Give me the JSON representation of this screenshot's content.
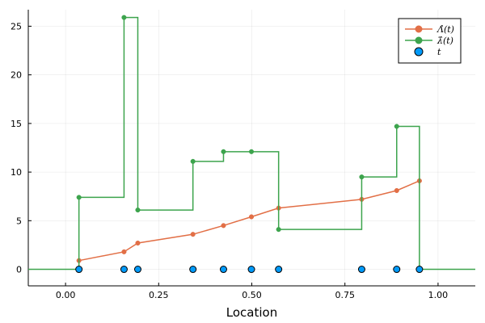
{
  "chart_data": {
    "type": "line",
    "xlabel": "Location",
    "ylabel": "",
    "xlim": [
      -0.1,
      1.1
    ],
    "ylim": [
      -1.7,
      26.7
    ],
    "xticks": [
      0.0,
      0.25,
      0.5,
      0.75,
      1.0
    ],
    "xtick_labels": [
      "0.00",
      "0.25",
      "0.50",
      "0.75",
      "1.00"
    ],
    "yticks": [
      0,
      5,
      10,
      15,
      20,
      25
    ],
    "ytick_labels": [
      "0",
      "5",
      "10",
      "15",
      "20",
      "25"
    ],
    "grid": true,
    "legend_position": "top-right",
    "series": [
      {
        "name": "Λ̂(t)",
        "kind": "line-with-markers",
        "color": "#e26f46",
        "x": [
          0.036,
          0.157,
          0.194,
          0.342,
          0.424,
          0.499,
          0.572,
          0.795,
          0.889,
          0.95
        ],
        "y": [
          0.9,
          1.8,
          2.7,
          3.6,
          4.5,
          5.4,
          6.3,
          7.2,
          8.1,
          9.1
        ]
      },
      {
        "name": "λ̂(t)",
        "kind": "step-post",
        "color": "#3da44d",
        "x": [
          0.036,
          0.157,
          0.194,
          0.342,
          0.424,
          0.499,
          0.572,
          0.795,
          0.889,
          0.95
        ],
        "y": [
          7.4,
          25.9,
          6.1,
          11.1,
          12.1,
          12.1,
          4.1,
          9.5,
          14.7,
          0.0
        ],
        "x_range": [
          -0.1,
          1.1
        ]
      },
      {
        "name": "t",
        "kind": "scatter",
        "color": "#009af9",
        "x": [
          0.036,
          0.157,
          0.194,
          0.342,
          0.424,
          0.499,
          0.572,
          0.795,
          0.889,
          0.95
        ],
        "y": [
          0,
          0,
          0,
          0,
          0,
          0,
          0,
          0,
          0,
          0
        ]
      }
    ]
  }
}
